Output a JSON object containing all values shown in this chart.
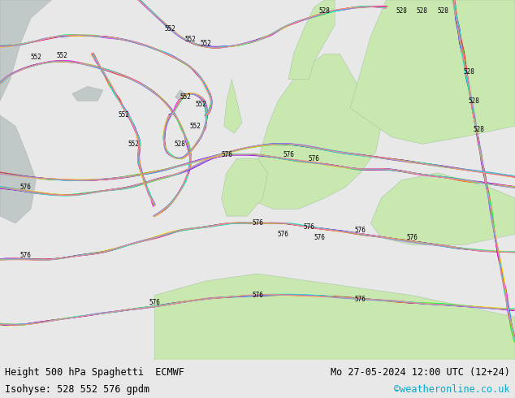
{
  "title_left": "Height 500 hPa Spaghetti  ECMWF",
  "title_right": "Mo 27-05-2024 12:00 UTC (12+24)",
  "subtitle_left": "Isohyse: 528 552 576 gpdm",
  "subtitle_right": "©weatheronline.co.uk",
  "footer_bg": "#e8e8e8",
  "title_fontsize": 8.5,
  "subtitle_fontsize": 8.5,
  "copyright_color": "#00aacc",
  "text_color": "#000000",
  "fig_width": 6.34,
  "fig_height": 4.9,
  "sea_color": "#e0eaef",
  "land_color": "#c8e8b0",
  "gray_color": "#c0c8c8",
  "white_color": "#f0f4f0",
  "spaghetti_colors": [
    "#00ccff",
    "#0000ff",
    "#ff0000",
    "#ff00ff",
    "#ffff00",
    "#00ff00",
    "#ff8800",
    "#8800ff",
    "#00ff88",
    "#ff0088",
    "#ffcc00",
    "#00ffcc",
    "#8888ff",
    "#ff8888"
  ],
  "n_members": 14,
  "line_width": 0.7,
  "noise_scale": 0.004
}
